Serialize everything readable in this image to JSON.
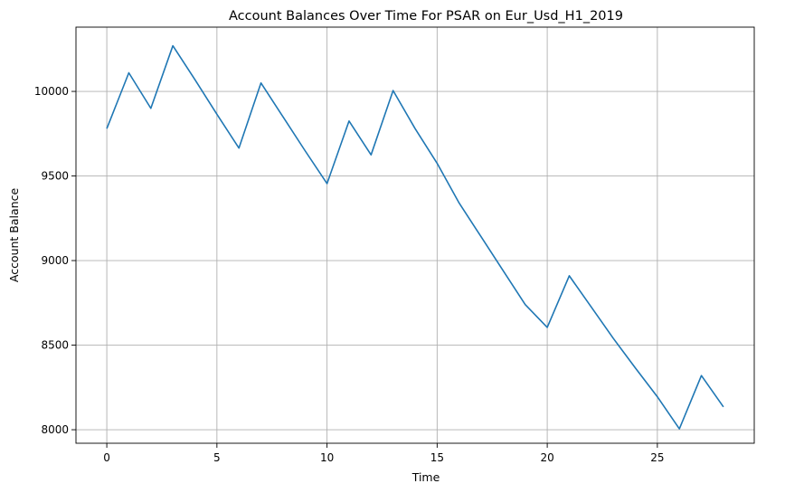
{
  "chart_data": {
    "type": "line",
    "title": "Account Balances Over Time For PSAR on Eur_Usd_H1_2019",
    "xlabel": "Time",
    "ylabel": "Account Balance",
    "xlim": [
      -1.4,
      29.4
    ],
    "ylim": [
      7920,
      10380
    ],
    "x_ticks": [
      0,
      5,
      10,
      15,
      20,
      25
    ],
    "y_ticks": [
      8000,
      8500,
      9000,
      9500,
      10000
    ],
    "grid": true,
    "series": [
      {
        "color": "#1f77b4",
        "x": [
          0,
          1,
          2,
          3,
          4,
          5,
          6,
          7,
          8,
          9,
          10,
          11,
          12,
          13,
          14,
          15,
          16,
          17,
          18,
          19,
          20,
          21,
          22,
          23,
          24,
          25,
          26,
          27,
          28
        ],
        "y": [
          9780,
          10110,
          9900,
          10270,
          10070,
          9865,
          9665,
          10050,
          9850,
          9650,
          9455,
          9825,
          9625,
          10005,
          9780,
          9575,
          9340,
          9140,
          8940,
          8740,
          8605,
          8910,
          8725,
          8540,
          8365,
          8195,
          8005,
          8320,
          8135
        ]
      }
    ]
  }
}
